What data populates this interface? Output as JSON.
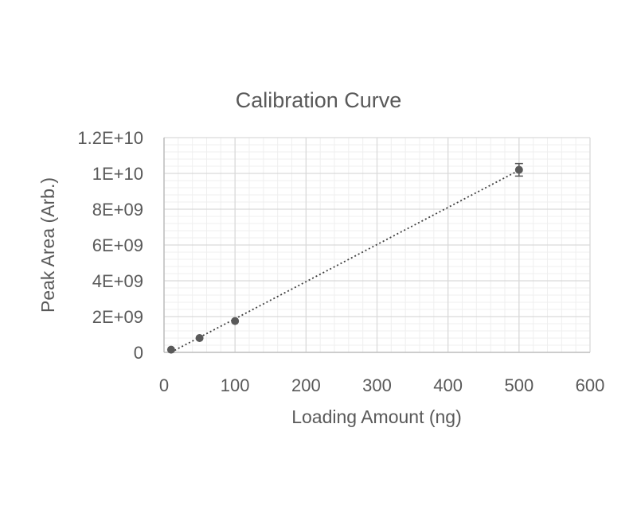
{
  "chart_data": {
    "type": "scatter",
    "title": "Calibration Curve",
    "xlabel": "Loading Amount (ng)",
    "ylabel": "Peak Area (Arb.)",
    "xlim": [
      0,
      600
    ],
    "ylim": [
      0,
      12000000000
    ],
    "x_ticks": [
      0,
      100,
      200,
      300,
      400,
      500,
      600
    ],
    "x_tick_labels": [
      "0",
      "100",
      "200",
      "300",
      "400",
      "500",
      "600"
    ],
    "y_ticks": [
      0,
      2000000000,
      4000000000,
      6000000000,
      8000000000,
      10000000000,
      12000000000
    ],
    "y_tick_labels": [
      "0",
      "2E+09",
      "4E+09",
      "6E+09",
      "8E+09",
      "1E+10",
      "1.2E+10"
    ],
    "grid": true,
    "minor_grid": true,
    "legend": "none",
    "series": [
      {
        "points": [
          {
            "x": 10,
            "y": 150000000,
            "error": 0
          },
          {
            "x": 50,
            "y": 800000000,
            "error": 0
          },
          {
            "x": 100,
            "y": 1750000000,
            "error": 0
          },
          {
            "x": 500,
            "y": 10200000000,
            "error": 350000000
          }
        ],
        "color": "#595959"
      }
    ],
    "trendline": {
      "type": "linear",
      "style": "dotted",
      "x_range": [
        10,
        500
      ],
      "color": "#404040"
    },
    "colors": {
      "major_grid": "#d9d9d9",
      "minor_grid": "#efefef",
      "text": "#595959",
      "axis": "#bfbfbf"
    }
  }
}
